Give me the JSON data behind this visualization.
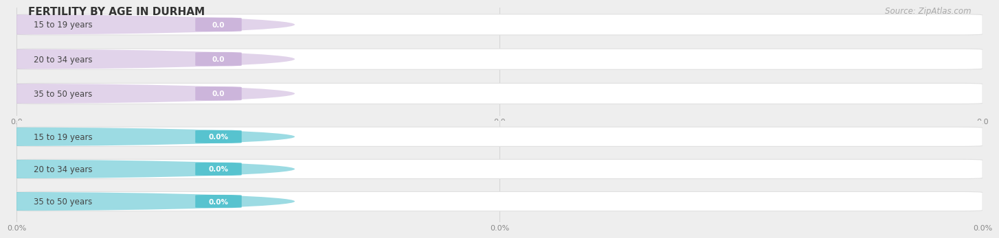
{
  "title": "FERTILITY BY AGE IN DURHAM",
  "source": "Source: ZipAtlas.com",
  "top_group": {
    "labels": [
      "15 to 19 years",
      "20 to 34 years",
      "35 to 50 years"
    ],
    "values": [
      0.0,
      0.0,
      0.0
    ],
    "bar_color": "#c9b0d9",
    "label_color": "#444444",
    "axis_tick_labels": [
      "0.0",
      "0.0",
      "0.0"
    ]
  },
  "bottom_group": {
    "labels": [
      "15 to 19 years",
      "20 to 34 years",
      "35 to 50 years"
    ],
    "values": [
      0.0,
      0.0,
      0.0
    ],
    "bar_color": "#4bbfcc",
    "label_color": "#444444",
    "axis_tick_labels": [
      "0.0%",
      "0.0%",
      "0.0%"
    ]
  },
  "bg_color": "#eeeeee",
  "bar_bg_color": "#ffffff",
  "separator_color": "#e0e0e0",
  "title_fontsize": 11,
  "source_fontsize": 8.5,
  "label_fontsize": 8.5,
  "value_fontsize": 7.5
}
